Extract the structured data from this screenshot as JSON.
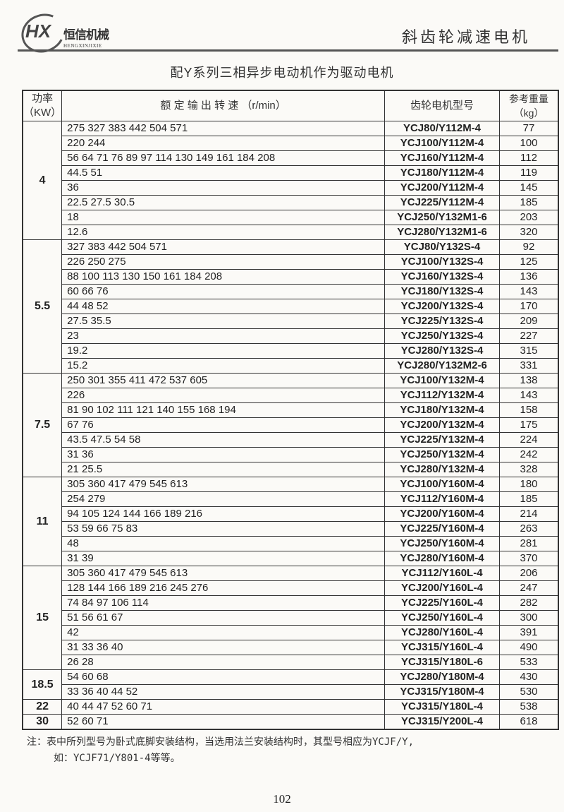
{
  "logo": {
    "mark": "HX",
    "name_cn": "恒信机械",
    "name_en": "HENGXINJIXIE"
  },
  "header": {
    "title": "斜齿轮减速电机"
  },
  "page_title": "配Y系列三相异步电动机作为驱动电机",
  "table": {
    "headers": {
      "power": "功率\n（KW）",
      "speed": "额 定 输 出 转 速 （r/min）",
      "model": "齿轮电机型号",
      "weight": "参考重量\n（kg）"
    },
    "groups": [
      {
        "power": "4",
        "rows": [
          [
            "275 327 383 442 504 571",
            "YCJ80/Y112M-4",
            "77"
          ],
          [
            "220 244",
            "YCJ100/Y112M-4",
            "100"
          ],
          [
            "56 64 71 76 89 97 114 130 149 161 184 208",
            "YCJ160/Y112M-4",
            "112"
          ],
          [
            "44.5 51",
            "YCJ180/Y112M-4",
            "119"
          ],
          [
            "36",
            "YCJ200/Y112M-4",
            "145"
          ],
          [
            "22.5 27.5 30.5",
            "YCJ225/Y112M-4",
            "185"
          ],
          [
            "18",
            "YCJ250/Y132M1-6",
            "203"
          ],
          [
            "12.6",
            "YCJ280/Y132M1-6",
            "320"
          ]
        ]
      },
      {
        "power": "5.5",
        "rows": [
          [
            "327 383 442 504 571",
            "YCJ80/Y132S-4",
            "92"
          ],
          [
            "226 250 275",
            "YCJ100/Y132S-4",
            "125"
          ],
          [
            "88 100 113 130 150 161 184 208",
            "YCJ160/Y132S-4",
            "136"
          ],
          [
            "60 66 76",
            "YCJ180/Y132S-4",
            "143"
          ],
          [
            "44 48 52",
            "YCJ200/Y132S-4",
            "170"
          ],
          [
            "27.5 35.5",
            "YCJ225/Y132S-4",
            "209"
          ],
          [
            "23",
            "YCJ250/Y132S-4",
            "227"
          ],
          [
            "19.2",
            "YCJ280/Y132S-4",
            "315"
          ],
          [
            "15.2",
            "YCJ280/Y132M2-6",
            "331"
          ]
        ]
      },
      {
        "power": "7.5",
        "rows": [
          [
            "250 301 355 411 472 537 605",
            "YCJ100/Y132M-4",
            "138"
          ],
          [
            "226",
            "YCJ112/Y132M-4",
            "143"
          ],
          [
            "81 90 102 111 121 140 155 168 194",
            "YCJ180/Y132M-4",
            "158"
          ],
          [
            "67 76",
            "YCJ200/Y132M-4",
            "175"
          ],
          [
            "43.5 47.5 54 58",
            "YCJ225/Y132M-4",
            "224"
          ],
          [
            "31 36",
            "YCJ250/Y132M-4",
            "242"
          ],
          [
            "21 25.5",
            "YCJ280/Y132M-4",
            "328"
          ]
        ]
      },
      {
        "power": "11",
        "rows": [
          [
            "305 360 417 479 545 613",
            "YCJ100/Y160M-4",
            "180"
          ],
          [
            "254 279",
            "YCJ112/Y160M-4",
            "185"
          ],
          [
            "94 105 124 144 166 189 216",
            "YCJ200/Y160M-4",
            "214"
          ],
          [
            "53 59 66 75 83",
            "YCJ225/Y160M-4",
            "263"
          ],
          [
            "48",
            "YCJ250/Y160M-4",
            "281"
          ],
          [
            "31 39",
            "YCJ280/Y160M-4",
            "370"
          ]
        ]
      },
      {
        "power": "15",
        "rows": [
          [
            "305 360 417 479 545 613",
            "YCJ112/Y160L-4",
            "206"
          ],
          [
            "128 144 166 189 216 245 276",
            "YCJ200/Y160L-4",
            "247"
          ],
          [
            "74 84 97 106 114",
            "YCJ225/Y160L-4",
            "282"
          ],
          [
            "51 56 61 67",
            "YCJ250/Y160L-4",
            "300"
          ],
          [
            "42",
            "YCJ280/Y160L-4",
            "391"
          ],
          [
            "31 33 36 40",
            "YCJ315/Y160L-4",
            "490"
          ],
          [
            "26 28",
            "YCJ315/Y180L-6",
            "533"
          ]
        ]
      },
      {
        "power": "18.5",
        "rows": [
          [
            "54 60 68",
            "YCJ280/Y180M-4",
            "430"
          ],
          [
            "33 36 40 44 52",
            "YCJ315/Y180M-4",
            "530"
          ]
        ]
      },
      {
        "power": "22",
        "rows": [
          [
            "40 44 47 52 60 71",
            "YCJ315/Y180L-4",
            "538"
          ]
        ]
      },
      {
        "power": "30",
        "rows": [
          [
            "52 60 71",
            "YCJ315/Y200L-4",
            "618"
          ]
        ]
      }
    ]
  },
  "note": {
    "line1": "注：表中所列型号为卧式底脚安装结构，当选用法兰安装结构时，其型号相应为YCJF/Y,",
    "line2": "如：YCJF71/Y801-4等等。"
  },
  "page_number": "102"
}
